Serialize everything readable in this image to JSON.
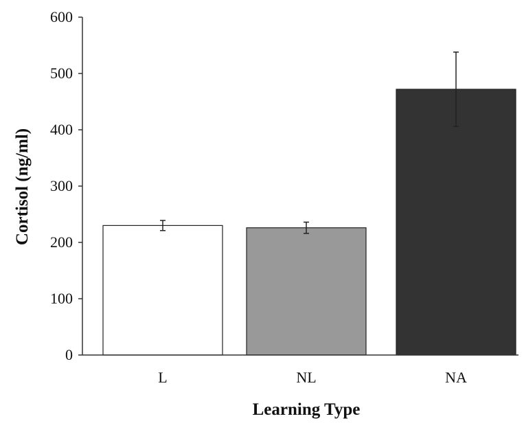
{
  "chart_data": {
    "type": "bar",
    "title": "",
    "xlabel": "Learning Type",
    "ylabel": "Cortisol (ng/ml)",
    "categories": [
      "L",
      "NL",
      "NA"
    ],
    "values": [
      230,
      226,
      472
    ],
    "errors": [
      9,
      10,
      66
    ],
    "colors": [
      "#ffffff",
      "#999999",
      "#333333"
    ],
    "ylim": [
      0,
      600
    ],
    "yticks": [
      0,
      100,
      200,
      300,
      400,
      500,
      600
    ],
    "grid": false,
    "legend": "none"
  }
}
